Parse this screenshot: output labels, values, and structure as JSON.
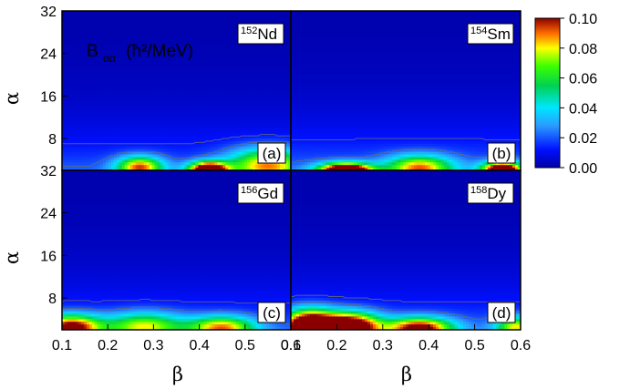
{
  "chart_data": {
    "type": "heatmap",
    "title_prefix": "B",
    "title_subscript": "αα",
    "title_units": "(ħ²/MeV)",
    "xlabel": "β",
    "ylabel": "α",
    "xlim": [
      0.1,
      0.6
    ],
    "ylim": [
      2,
      32
    ],
    "x_ticks": [
      "0.1",
      "0.2",
      "0.3",
      "0.4",
      "0.5",
      "0.6"
    ],
    "x_ticks_right": [
      "0.1",
      "0.2",
      "0.3",
      "0.4",
      "0.5",
      "0.6"
    ],
    "y_ticks": [
      "8",
      "16",
      "24",
      "32"
    ],
    "colorbar": {
      "range": [
        0.0,
        0.1
      ],
      "ticks": [
        "0.00",
        "0.02",
        "0.04",
        "0.06",
        "0.08",
        "0.10"
      ]
    },
    "panels": [
      {
        "tag": "(a)",
        "mass": "152",
        "element": "Nd",
        "blobs": [
          {
            "beta": 0.27,
            "alpha": 2.6,
            "amp": 0.075,
            "sb": 0.035,
            "sa": 1.4
          },
          {
            "beta": 0.42,
            "alpha": 2.2,
            "amp": 0.11,
            "sb": 0.03,
            "sa": 1.0
          },
          {
            "beta": 0.55,
            "alpha": 3.0,
            "amp": 0.07,
            "sb": 0.06,
            "sa": 2.2
          }
        ],
        "background": {
          "base": 0.016,
          "decay": 7.0
        }
      },
      {
        "tag": "(b)",
        "mass": "154",
        "element": "Sm",
        "blobs": [
          {
            "beta": 0.22,
            "alpha": 2.1,
            "amp": 0.12,
            "sb": 0.04,
            "sa": 0.9
          },
          {
            "beta": 0.38,
            "alpha": 2.5,
            "amp": 0.07,
            "sb": 0.05,
            "sa": 1.6
          },
          {
            "beta": 0.56,
            "alpha": 2.2,
            "amp": 0.11,
            "sb": 0.03,
            "sa": 1.0
          }
        ],
        "background": {
          "base": 0.018,
          "decay": 7.5
        }
      },
      {
        "tag": "(c)",
        "mass": "156",
        "element": "Gd",
        "blobs": [
          {
            "beta": 0.12,
            "alpha": 2.5,
            "amp": 0.09,
            "sb": 0.045,
            "sa": 1.6
          },
          {
            "beta": 0.28,
            "alpha": 2.6,
            "amp": 0.06,
            "sb": 0.06,
            "sa": 1.8
          },
          {
            "beta": 0.45,
            "alpha": 2.4,
            "amp": 0.07,
            "sb": 0.05,
            "sa": 1.5
          }
        ],
        "background": {
          "base": 0.016,
          "decay": 7.0
        }
      },
      {
        "tag": "(d)",
        "mass": "158",
        "element": "Dy",
        "blobs": [
          {
            "beta": 0.14,
            "alpha": 2.8,
            "amp": 0.12,
            "sb": 0.04,
            "sa": 2.0
          },
          {
            "beta": 0.23,
            "alpha": 2.6,
            "amp": 0.11,
            "sb": 0.045,
            "sa": 1.8
          },
          {
            "beta": 0.38,
            "alpha": 2.3,
            "amp": 0.09,
            "sb": 0.05,
            "sa": 1.4
          },
          {
            "beta": 0.59,
            "alpha": 2.5,
            "amp": 0.06,
            "sb": 0.03,
            "sa": 1.4
          }
        ],
        "background": {
          "base": 0.017,
          "decay": 7.0
        }
      }
    ]
  }
}
